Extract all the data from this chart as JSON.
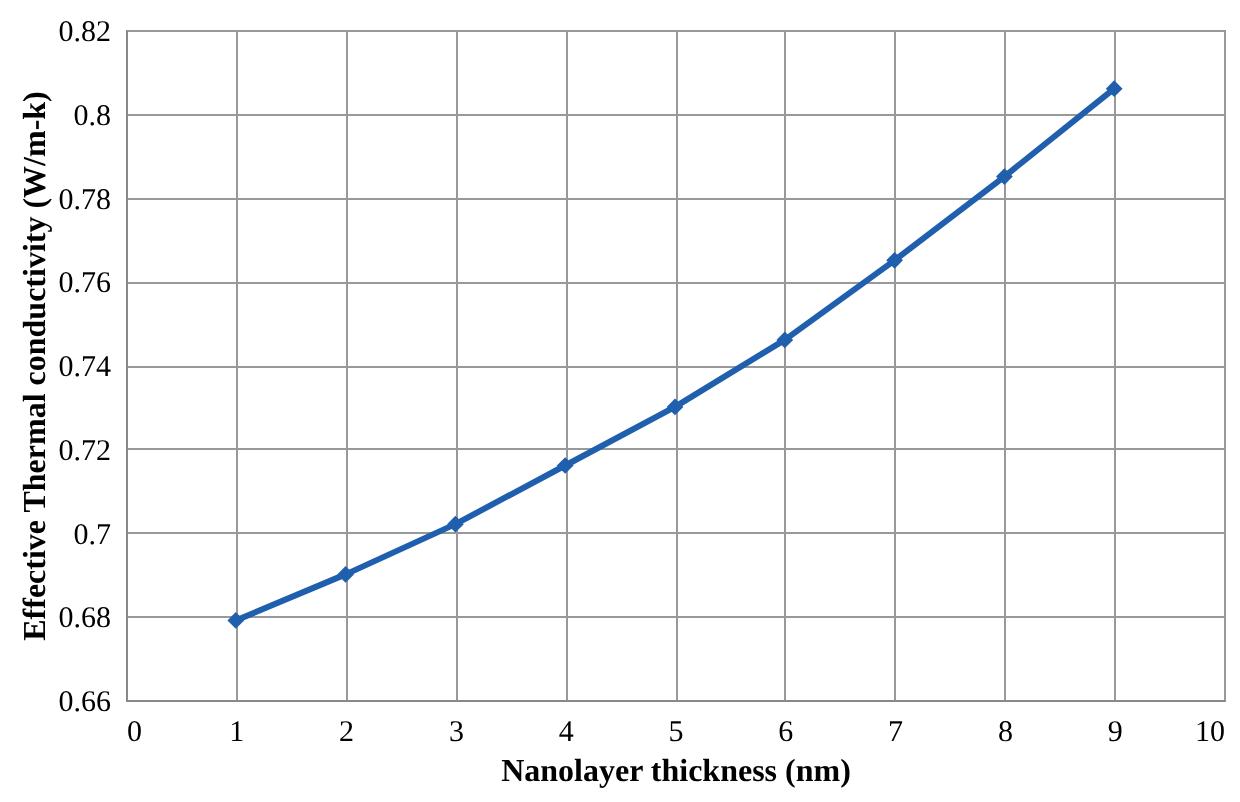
{
  "chart_data": {
    "type": "line",
    "xlabel": "Nanolayer thickness (nm)",
    "ylabel": "Effective Thermal conductivity (W/m-k)",
    "x": [
      1,
      2,
      3,
      4,
      5,
      6,
      7,
      8,
      9
    ],
    "series": [
      {
        "color": "#1f5fae",
        "values": [
          0.679,
          0.69,
          0.702,
          0.716,
          0.73,
          0.746,
          0.765,
          0.785,
          0.806
        ]
      }
    ],
    "xlim": [
      0,
      10
    ],
    "xticks": [
      0,
      1,
      2,
      3,
      4,
      5,
      6,
      7,
      8,
      9,
      10
    ],
    "ylim": [
      0.66,
      0.82
    ],
    "yticks": [
      0.66,
      0.68,
      0.7,
      0.72,
      0.74,
      0.76,
      0.78,
      0.8,
      0.82
    ],
    "grid": true,
    "marker": "diamond",
    "line_style": "solid"
  }
}
